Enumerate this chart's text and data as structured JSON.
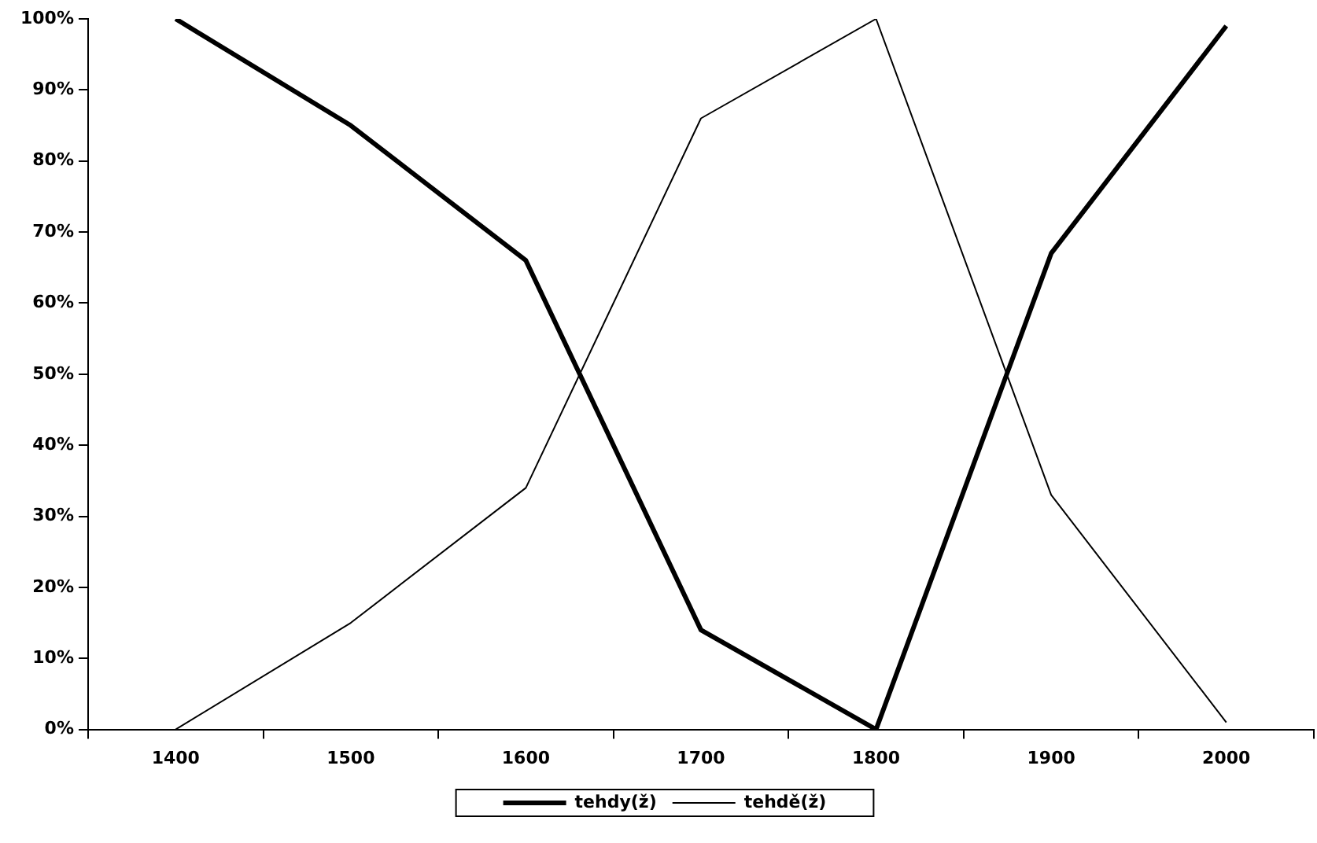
{
  "chart_data": {
    "type": "line",
    "categories": [
      "1400",
      "1500",
      "1600",
      "1700",
      "1800",
      "1900",
      "2000"
    ],
    "series": [
      {
        "name": "tehdy(ž)",
        "color": "#000000",
        "values": [
          100,
          85,
          66,
          14,
          0,
          67,
          99
        ]
      },
      {
        "name": "tehdě(ž)",
        "color": "#000000",
        "values": [
          0,
          15,
          34,
          86,
          100,
          33,
          1
        ]
      }
    ],
    "ylim": [
      0,
      100
    ],
    "yticks": [
      {
        "value": 0,
        "label": "0%"
      },
      {
        "value": 10,
        "label": "10%"
      },
      {
        "value": 20,
        "label": "20%"
      },
      {
        "value": 30,
        "label": "30%"
      },
      {
        "value": 40,
        "label": "40%"
      },
      {
        "value": 50,
        "label": "50%"
      },
      {
        "value": 60,
        "label": "60%"
      },
      {
        "value": 70,
        "label": "70%"
      },
      {
        "value": 80,
        "label": "80%"
      },
      {
        "value": 90,
        "label": "90%"
      },
      {
        "value": 100,
        "label": "100%"
      }
    ],
    "grid": false,
    "legend": "bottom",
    "marker": "none",
    "line_style": "solid"
  }
}
